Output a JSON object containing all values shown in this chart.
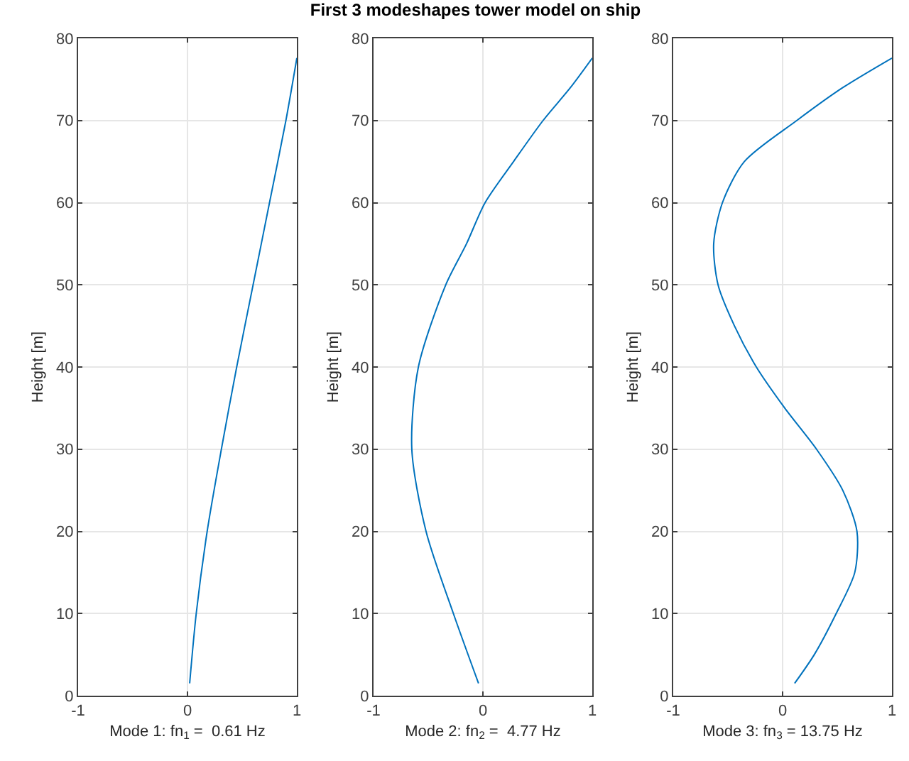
{
  "chart_data": [
    {
      "type": "line",
      "xlabel": "Mode 1: fn$_{1}$ =  0.61 Hz",
      "ylabel": "Height [m]",
      "xlim": [
        -1,
        1
      ],
      "xticks": [
        -1,
        0,
        1
      ],
      "ylim": [
        0,
        80
      ],
      "yticks": [
        0,
        10,
        20,
        30,
        40,
        50,
        60,
        70,
        80
      ],
      "grid": true,
      "series": [
        {
          "color": "#0072bd",
          "x": [
            0.02,
            0.08,
            0.18,
            0.31,
            0.45,
            0.6,
            0.75,
            0.9,
            1.0
          ],
          "values": [
            1.5,
            10,
            20,
            30,
            40,
            50,
            60,
            70,
            77.6
          ]
        }
      ]
    },
    {
      "type": "line",
      "title": "First 3 modeshapes tower model on ship",
      "xlabel": "Mode 2: fn$_{2}$ =  4.77 Hz",
      "ylabel": "Height [m]",
      "xlim": [
        -1,
        1
      ],
      "xticks": [
        -1,
        0,
        1
      ],
      "ylim": [
        0,
        80
      ],
      "yticks": [
        0,
        10,
        20,
        30,
        40,
        50,
        60,
        70,
        80
      ],
      "grid": true,
      "series": [
        {
          "color": "#0072bd",
          "x": [
            -0.04,
            -0.27,
            -0.52,
            -0.65,
            -0.59,
            -0.34,
            -0.15,
            0.02,
            0.28,
            0.55,
            0.8,
            1.0
          ],
          "values": [
            1.5,
            10,
            20,
            30,
            40,
            50,
            55,
            60,
            65,
            70,
            74,
            77.6
          ]
        }
      ]
    },
    {
      "type": "line",
      "xlabel": "Mode 3: fn$_{3}$ = 13.75 Hz",
      "ylabel": "Height [m]",
      "xlim": [
        -1,
        1
      ],
      "xticks": [
        -1,
        0,
        1
      ],
      "ylim": [
        0,
        80
      ],
      "yticks": [
        0,
        10,
        20,
        30,
        40,
        50,
        60,
        70,
        80
      ],
      "grid": true,
      "series": [
        {
          "color": "#0072bd",
          "x": [
            0.11,
            0.29,
            0.49,
            0.66,
            0.68,
            0.55,
            0.31,
            0.02,
            -0.24,
            -0.44,
            -0.59,
            -0.63,
            -0.55,
            -0.35,
            0.13,
            0.55,
            1.0
          ],
          "values": [
            1.5,
            5,
            10,
            15,
            20,
            25,
            30,
            35,
            40,
            45,
            50,
            55,
            60,
            65,
            70,
            74,
            77.6
          ]
        }
      ]
    }
  ]
}
